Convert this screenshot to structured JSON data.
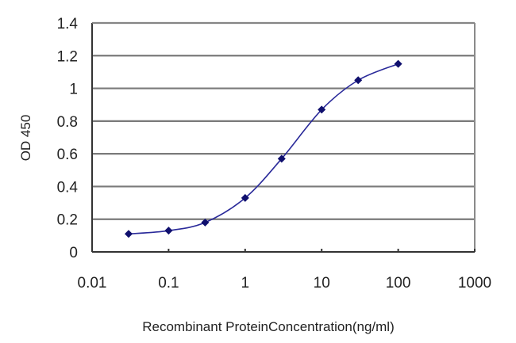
{
  "chart_data": {
    "type": "line",
    "title": "",
    "xlabel": "Recombinant ProteinConcentration(ng/ml)",
    "ylabel": "OD 450",
    "xscale": "log",
    "xlim": [
      0.01,
      1000
    ],
    "ylim": [
      0,
      1.4
    ],
    "x_ticks": [
      0.01,
      0.1,
      1,
      10,
      100,
      1000
    ],
    "x_tick_labels": [
      "0.01",
      "0.1",
      "1",
      "10",
      "100",
      "1000"
    ],
    "y_ticks": [
      0,
      0.2,
      0.4,
      0.6,
      0.8,
      1,
      1.2,
      1.4
    ],
    "y_tick_labels": [
      "0",
      "0.2",
      "0.4",
      "0.6",
      "0.8",
      "1",
      "1.2",
      "1.4"
    ],
    "grid": {
      "horizontal": true,
      "vertical": false
    },
    "legend": null,
    "series": [
      {
        "name": "OD 450",
        "color": "#1f1f8f",
        "marker": "diamond",
        "x": [
          0.03,
          0.1,
          0.3,
          1,
          3,
          10,
          30,
          100
        ],
        "values": [
          0.11,
          0.13,
          0.18,
          0.33,
          0.57,
          0.87,
          1.05,
          1.15
        ]
      }
    ]
  },
  "colors": {
    "line": "#2a2a9a",
    "marker": "#10106e",
    "grid": "#7a7a7a",
    "axis": "#333333",
    "background": "#ffffff"
  }
}
